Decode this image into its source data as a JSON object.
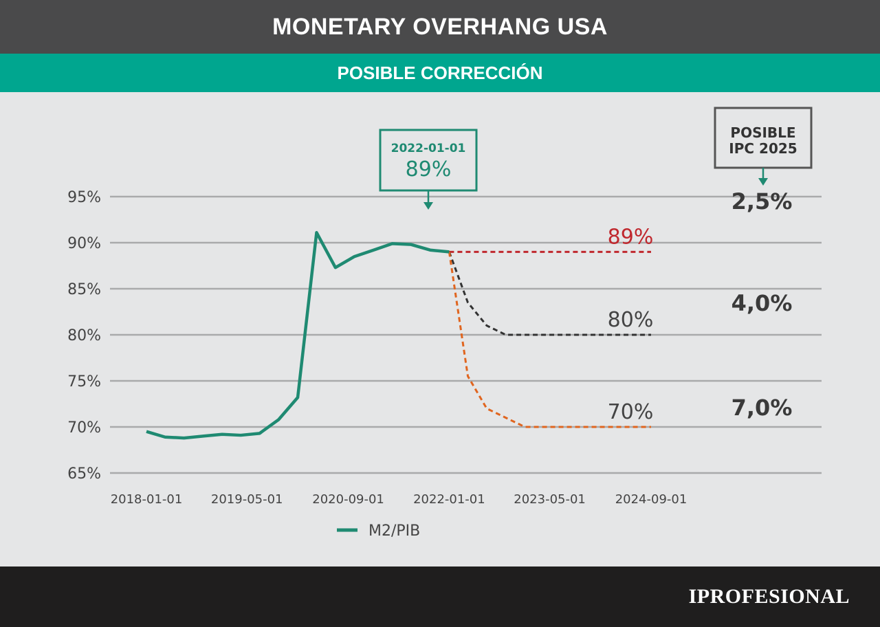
{
  "header": {
    "title": "MONETARY OVERHANG USA",
    "subtitle": "POSIBLE CORRECCIÓN"
  },
  "footer": {
    "brand": "IPROFESIONAL"
  },
  "colors": {
    "series": "#1f8a72",
    "scenario_89": "#c0282e",
    "scenario_80": "#333333",
    "scenario_70": "#e0651f",
    "header_bg": "#4a4a4b",
    "subheader_bg": "#00a68f"
  },
  "chart_data": {
    "type": "line",
    "title": "MONETARY OVERHANG USA",
    "subtitle": "POSIBLE CORRECCIÓN",
    "xlabel": "",
    "ylabel": "",
    "x_ticks": [
      "2018-01-01",
      "2019-05-01",
      "2020-09-01",
      "2022-01-01",
      "2023-05-01",
      "2024-09-01"
    ],
    "y_ticks": [
      "65%",
      "70%",
      "75%",
      "80%",
      "85%",
      "90%",
      "95%"
    ],
    "ylim": [
      65,
      95
    ],
    "grid": true,
    "legend": {
      "position": "bottom",
      "entries": [
        "M2/PIB"
      ]
    },
    "series": [
      {
        "name": "M2/PIB",
        "x": [
          "2018-01-01",
          "2018-04-01",
          "2018-07-01",
          "2018-10-01",
          "2019-01-01",
          "2019-04-01",
          "2019-07-01",
          "2019-10-01",
          "2020-01-01",
          "2020-04-01",
          "2020-07-01",
          "2020-10-01",
          "2021-01-01",
          "2021-04-01",
          "2021-07-01",
          "2021-10-01",
          "2022-01-01"
        ],
        "values": [
          69.5,
          68.9,
          68.8,
          69.0,
          69.2,
          69.1,
          69.3,
          70.8,
          73.2,
          91.1,
          87.3,
          88.5,
          89.2,
          89.9,
          89.8,
          89.2,
          89.0
        ]
      }
    ],
    "scenarios": [
      {
        "label": "89%",
        "ipc": "2,5%",
        "x": [
          "2022-01-01",
          "2024-09-01"
        ],
        "values": [
          89,
          89
        ]
      },
      {
        "label": "80%",
        "x": [
          "2022-01-01",
          "2022-04-01",
          "2022-07-01",
          "2022-10-01",
          "2023-01-01",
          "2024-09-01"
        ],
        "values": [
          89,
          83.5,
          81.0,
          80.0,
          80.0,
          80.0
        ],
        "ipc": "4,0%"
      },
      {
        "label": "70%",
        "x": [
          "2022-01-01",
          "2022-04-01",
          "2022-07-01",
          "2022-10-01",
          "2023-01-01",
          "2024-09-01"
        ],
        "values": [
          89,
          75.5,
          72.0,
          71.0,
          70.0,
          70.0
        ],
        "ipc": "7,0%"
      }
    ],
    "annotation": {
      "date": "2022-01-01",
      "value": "89%"
    },
    "ipc_box": {
      "line1": "POSIBLE",
      "line2": "IPC 2025"
    }
  }
}
